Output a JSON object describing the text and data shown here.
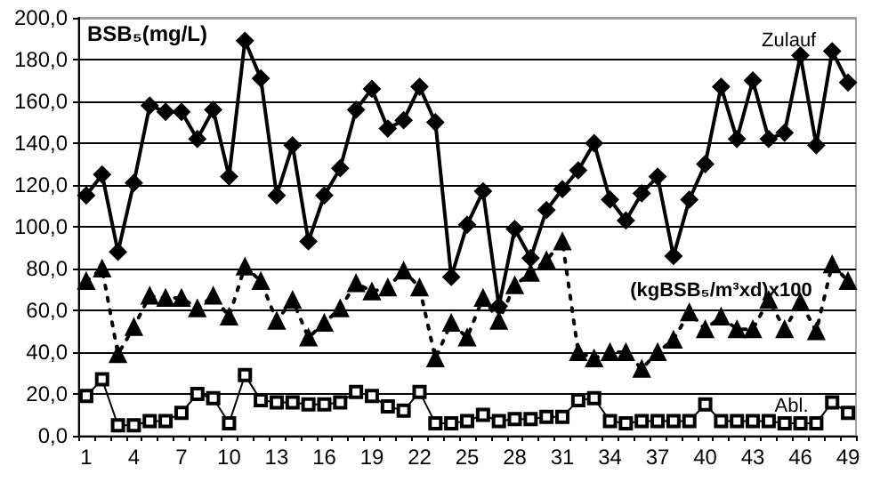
{
  "chart_data": {
    "type": "line",
    "ylabel": "BSB₅(mg/L)",
    "categories": [
      "1",
      null,
      null,
      "4",
      null,
      null,
      "7",
      null,
      null,
      "10",
      null,
      null,
      "13",
      null,
      null,
      "16",
      null,
      null,
      "19",
      null,
      null,
      "22",
      null,
      null,
      "25",
      null,
      null,
      "28",
      null,
      null,
      "31",
      null,
      null,
      "34",
      null,
      null,
      "37",
      null,
      null,
      "40",
      null,
      null,
      "43",
      null,
      null,
      "46",
      null,
      null,
      "49"
    ],
    "series": [
      {
        "name": "Zulauf",
        "color": "#000000",
        "marker": "diamond",
        "line_style": "solid",
        "values": [
          115,
          125,
          88,
          121,
          158,
          155,
          155,
          142,
          156,
          124,
          189,
          171,
          115,
          139,
          93,
          115,
          128,
          156,
          166,
          147,
          151,
          167,
          150,
          76,
          101,
          117,
          62,
          99,
          85,
          108,
          118,
          127,
          140,
          113,
          103,
          116,
          124,
          86,
          113,
          130,
          167,
          142,
          170,
          142,
          145,
          182,
          139,
          184,
          169
        ]
      },
      {
        "name": "(kgBSB₅/m³xd)x100",
        "color": "#000000",
        "marker": "triangle",
        "line_style": "dotted",
        "values": [
          74,
          80,
          39,
          52,
          67,
          66,
          66,
          61,
          67,
          57,
          81,
          74,
          55,
          65,
          47,
          54,
          61,
          73,
          69,
          71,
          79,
          71,
          37,
          54,
          47,
          66,
          55,
          72,
          78,
          84,
          93,
          40,
          37,
          40,
          40,
          32,
          40,
          46,
          59,
          51,
          57,
          51,
          51,
          65,
          51,
          64,
          50,
          82,
          74
        ]
      },
      {
        "name": "Abl.",
        "color": "#000000",
        "marker": "square",
        "line_style": "solid",
        "values": [
          19,
          27,
          5,
          5,
          7,
          7,
          11,
          20,
          18,
          6,
          29,
          17,
          16,
          16,
          15,
          15,
          16,
          21,
          19,
          14,
          12,
          21,
          6,
          6,
          7,
          10,
          7,
          8,
          8,
          9,
          9,
          17,
          18,
          7,
          6,
          7,
          7,
          7,
          7,
          15,
          7,
          7,
          7,
          7,
          6,
          6,
          6,
          16,
          11
        ]
      }
    ],
    "ylim": [
      0,
      200
    ],
    "yticks": [
      {
        "value": 0,
        "label": "0,0"
      },
      {
        "value": 20,
        "label": "20,0"
      },
      {
        "value": 40,
        "label": "40,0"
      },
      {
        "value": 60,
        "label": "60,0"
      },
      {
        "value": 80,
        "label": "80,0"
      },
      {
        "value": 100,
        "label": "100,0"
      },
      {
        "value": 120,
        "label": "120,0"
      },
      {
        "value": 140,
        "label": "140,0"
      },
      {
        "value": 160,
        "label": "160,0"
      },
      {
        "value": 180,
        "label": "180,0"
      },
      {
        "value": 200,
        "label": "200,0"
      }
    ],
    "grid": "y"
  }
}
